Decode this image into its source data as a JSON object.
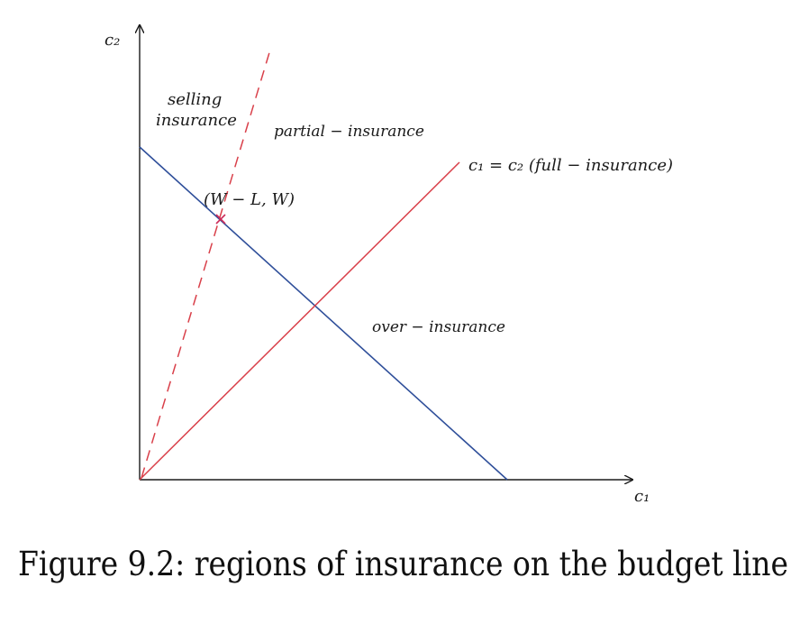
{
  "diagram": {
    "axes": {
      "y_label": "c₂",
      "x_label": "c₁"
    },
    "regions": {
      "selling": [
        "selling",
        "insurance"
      ],
      "partial": "partial − insurance",
      "over": "over − insurance"
    },
    "lines": {
      "full_insurance_label": "c₁ = c₂ (full − insurance)",
      "endowment_point_label": "(W − L, W)"
    },
    "colors": {
      "axis": "#1a1a1a",
      "budget_line": "#2f4f9a",
      "full_insurance_line": "#d9404a",
      "ray_line": "#d9404a",
      "point": "#cc2c5a"
    }
  },
  "caption": "Figure 9.2: regions of insurance on the budget line"
}
